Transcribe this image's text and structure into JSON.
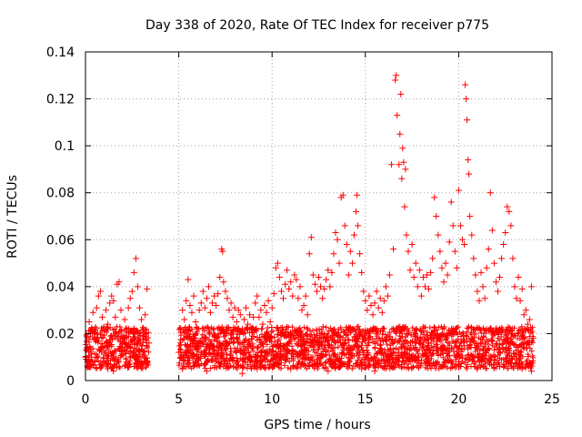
{
  "chart_data": {
    "type": "scatter",
    "title": "Day 338 of 2020, Rate Of TEC Index for receiver p775",
    "xlabel": "GPS time / hours",
    "ylabel": "ROTI / TECUs",
    "xlim": [
      0,
      25
    ],
    "ylim": [
      0,
      0.14
    ],
    "x_ticks": [
      0,
      5,
      10,
      15,
      20,
      25
    ],
    "y_ticks": [
      0,
      0.02,
      0.04,
      0.06,
      0.08,
      0.1,
      0.12,
      0.14
    ],
    "x_tick_labels": [
      "0",
      "5",
      "10",
      "15",
      "20",
      "25"
    ],
    "y_tick_labels": [
      "0",
      "0.02",
      "0.04",
      "0.06",
      "0.08",
      "0.1",
      "0.12",
      "0.14"
    ],
    "grid": true,
    "marker": "plus",
    "color": "#ff0000",
    "series": [
      {
        "points": [
          [
            0.0,
            0.01
          ],
          [
            0.1,
            0.014
          ],
          [
            0.2,
            0.025
          ],
          [
            0.3,
            0.012
          ],
          [
            0.4,
            0.029
          ],
          [
            0.5,
            0.018
          ],
          [
            0.6,
            0.031
          ],
          [
            0.7,
            0.036
          ],
          [
            0.8,
            0.038
          ],
          [
            0.9,
            0.027
          ],
          [
            1.0,
            0.021
          ],
          [
            1.1,
            0.03
          ],
          [
            1.2,
            0.024
          ],
          [
            1.3,
            0.033
          ],
          [
            1.4,
            0.036
          ],
          [
            1.5,
            0.034
          ],
          [
            1.6,
            0.027
          ],
          [
            1.7,
            0.041
          ],
          [
            1.8,
            0.042
          ],
          [
            1.9,
            0.03
          ],
          [
            2.0,
            0.018
          ],
          [
            2.1,
            0.026
          ],
          [
            2.2,
            0.022
          ],
          [
            2.3,
            0.031
          ],
          [
            2.4,
            0.035
          ],
          [
            2.5,
            0.038
          ],
          [
            2.6,
            0.046
          ],
          [
            2.7,
            0.052
          ],
          [
            2.8,
            0.04
          ],
          [
            2.9,
            0.031
          ],
          [
            3.0,
            0.026
          ],
          [
            3.1,
            0.02
          ],
          [
            3.2,
            0.028
          ],
          [
            3.3,
            0.039
          ],
          [
            3.4,
            0.016
          ],
          [
            0.2,
            0.006
          ],
          [
            0.5,
            0.008
          ],
          [
            0.9,
            0.007
          ],
          [
            1.2,
            0.005
          ],
          [
            1.5,
            0.004
          ],
          [
            1.8,
            0.006
          ],
          [
            2.2,
            0.008
          ],
          [
            2.6,
            0.006
          ],
          [
            3.0,
            0.007
          ],
          [
            3.3,
            0.008
          ],
          [
            5.0,
            0.012
          ],
          [
            5.1,
            0.022
          ],
          [
            5.2,
            0.03
          ],
          [
            5.3,
            0.026
          ],
          [
            5.4,
            0.034
          ],
          [
            5.5,
            0.043
          ],
          [
            5.6,
            0.032
          ],
          [
            5.7,
            0.029
          ],
          [
            5.8,
            0.036
          ],
          [
            5.9,
            0.025
          ],
          [
            6.0,
            0.022
          ],
          [
            6.1,
            0.03
          ],
          [
            6.2,
            0.033
          ],
          [
            6.3,
            0.038
          ],
          [
            6.4,
            0.031
          ],
          [
            6.5,
            0.035
          ],
          [
            6.6,
            0.04
          ],
          [
            6.7,
            0.029
          ],
          [
            6.8,
            0.033
          ],
          [
            6.9,
            0.036
          ],
          [
            7.0,
            0.032
          ],
          [
            7.1,
            0.037
          ],
          [
            7.2,
            0.044
          ],
          [
            7.3,
            0.056
          ],
          [
            7.35,
            0.055
          ],
          [
            7.4,
            0.042
          ],
          [
            7.5,
            0.038
          ],
          [
            7.6,
            0.035
          ],
          [
            7.7,
            0.03
          ],
          [
            7.8,
            0.033
          ],
          [
            7.9,
            0.027
          ],
          [
            8.0,
            0.031
          ],
          [
            8.1,
            0.025
          ],
          [
            8.2,
            0.03
          ],
          [
            8.3,
            0.028
          ],
          [
            8.4,
            0.022
          ],
          [
            8.5,
            0.026
          ],
          [
            8.6,
            0.031
          ],
          [
            8.7,
            0.024
          ],
          [
            8.8,
            0.028
          ],
          [
            8.9,
            0.022
          ],
          [
            9.0,
            0.027
          ],
          [
            9.1,
            0.033
          ],
          [
            9.2,
            0.036
          ],
          [
            9.3,
            0.027
          ],
          [
            9.4,
            0.03
          ],
          [
            9.5,
            0.024
          ],
          [
            9.6,
            0.032
          ],
          [
            9.7,
            0.029
          ],
          [
            9.8,
            0.034
          ],
          [
            9.9,
            0.025
          ],
          [
            10.0,
            0.031
          ],
          [
            10.1,
            0.037
          ],
          [
            10.2,
            0.048
          ],
          [
            10.3,
            0.05
          ],
          [
            10.4,
            0.044
          ],
          [
            10.5,
            0.038
          ],
          [
            10.6,
            0.035
          ],
          [
            10.7,
            0.041
          ],
          [
            10.8,
            0.047
          ],
          [
            10.9,
            0.039
          ],
          [
            11.0,
            0.042
          ],
          [
            11.1,
            0.036
          ],
          [
            11.2,
            0.045
          ],
          [
            11.3,
            0.043
          ],
          [
            11.4,
            0.035
          ],
          [
            11.5,
            0.04
          ],
          [
            11.6,
            0.03
          ],
          [
            11.7,
            0.032
          ],
          [
            11.8,
            0.036
          ],
          [
            11.9,
            0.028
          ],
          [
            12.0,
            0.054
          ],
          [
            12.1,
            0.061
          ],
          [
            12.2,
            0.045
          ],
          [
            12.3,
            0.041
          ],
          [
            12.4,
            0.038
          ],
          [
            12.5,
            0.044
          ],
          [
            12.6,
            0.04
          ],
          [
            12.7,
            0.035
          ],
          [
            12.8,
            0.039
          ],
          [
            12.9,
            0.043
          ],
          [
            13.0,
            0.047
          ],
          [
            13.1,
            0.04
          ],
          [
            13.2,
            0.046
          ],
          [
            13.3,
            0.054
          ],
          [
            13.4,
            0.063
          ],
          [
            13.5,
            0.06
          ],
          [
            13.6,
            0.05
          ],
          [
            13.7,
            0.078
          ],
          [
            13.8,
            0.079
          ],
          [
            13.9,
            0.066
          ],
          [
            14.0,
            0.058
          ],
          [
            14.1,
            0.045
          ],
          [
            14.2,
            0.055
          ],
          [
            14.3,
            0.05
          ],
          [
            14.4,
            0.062
          ],
          [
            14.5,
            0.072
          ],
          [
            14.55,
            0.079
          ],
          [
            14.6,
            0.066
          ],
          [
            14.7,
            0.054
          ],
          [
            14.8,
            0.046
          ],
          [
            14.9,
            0.038
          ],
          [
            15.0,
            0.034
          ],
          [
            15.1,
            0.03
          ],
          [
            15.2,
            0.036
          ],
          [
            15.3,
            0.032
          ],
          [
            15.4,
            0.028
          ],
          [
            15.5,
            0.033
          ],
          [
            15.6,
            0.038
          ],
          [
            15.7,
            0.031
          ],
          [
            15.8,
            0.035
          ],
          [
            15.9,
            0.029
          ],
          [
            16.0,
            0.034
          ],
          [
            16.1,
            0.04
          ],
          [
            16.2,
            0.036
          ],
          [
            16.3,
            0.045
          ],
          [
            16.4,
            0.092
          ],
          [
            16.5,
            0.056
          ],
          [
            16.6,
            0.128
          ],
          [
            16.65,
            0.13
          ],
          [
            16.7,
            0.113
          ],
          [
            16.8,
            0.092
          ],
          [
            16.85,
            0.105
          ],
          [
            16.9,
            0.122
          ],
          [
            16.95,
            0.086
          ],
          [
            17.0,
            0.099
          ],
          [
            17.05,
            0.093
          ],
          [
            17.1,
            0.074
          ],
          [
            17.15,
            0.09
          ],
          [
            17.2,
            0.062
          ],
          [
            17.3,
            0.055
          ],
          [
            17.4,
            0.047
          ],
          [
            17.5,
            0.058
          ],
          [
            17.6,
            0.044
          ],
          [
            17.7,
            0.05
          ],
          [
            17.8,
            0.04
          ],
          [
            17.9,
            0.047
          ],
          [
            18.0,
            0.036
          ],
          [
            18.1,
            0.044
          ],
          [
            18.2,
            0.04
          ],
          [
            18.3,
            0.045
          ],
          [
            18.4,
            0.039
          ],
          [
            18.5,
            0.046
          ],
          [
            18.6,
            0.052
          ],
          [
            18.7,
            0.078
          ],
          [
            18.8,
            0.07
          ],
          [
            18.9,
            0.062
          ],
          [
            19.0,
            0.055
          ],
          [
            19.1,
            0.048
          ],
          [
            19.2,
            0.042
          ],
          [
            19.3,
            0.05
          ],
          [
            19.4,
            0.045
          ],
          [
            19.5,
            0.059
          ],
          [
            19.6,
            0.076
          ],
          [
            19.7,
            0.066
          ],
          [
            19.8,
            0.055
          ],
          [
            19.9,
            0.048
          ],
          [
            20.0,
            0.081
          ],
          [
            20.1,
            0.066
          ],
          [
            20.2,
            0.06
          ],
          [
            20.3,
            0.058
          ],
          [
            20.35,
            0.126
          ],
          [
            20.4,
            0.12
          ],
          [
            20.45,
            0.111
          ],
          [
            20.5,
            0.094
          ],
          [
            20.55,
            0.088
          ],
          [
            20.6,
            0.07
          ],
          [
            20.7,
            0.062
          ],
          [
            20.8,
            0.052
          ],
          [
            20.9,
            0.045
          ],
          [
            21.0,
            0.038
          ],
          [
            21.1,
            0.034
          ],
          [
            21.2,
            0.046
          ],
          [
            21.3,
            0.04
          ],
          [
            21.4,
            0.035
          ],
          [
            21.5,
            0.048
          ],
          [
            21.6,
            0.056
          ],
          [
            21.7,
            0.08
          ],
          [
            21.8,
            0.064
          ],
          [
            21.9,
            0.05
          ],
          [
            22.0,
            0.042
          ],
          [
            22.1,
            0.038
          ],
          [
            22.2,
            0.044
          ],
          [
            22.3,
            0.052
          ],
          [
            22.4,
            0.058
          ],
          [
            22.5,
            0.063
          ],
          [
            22.6,
            0.074
          ],
          [
            22.7,
            0.072
          ],
          [
            22.8,
            0.066
          ],
          [
            22.9,
            0.052
          ],
          [
            23.0,
            0.04
          ],
          [
            23.1,
            0.035
          ],
          [
            23.2,
            0.044
          ],
          [
            23.3,
            0.034
          ],
          [
            23.4,
            0.039
          ],
          [
            23.5,
            0.028
          ],
          [
            23.6,
            0.03
          ],
          [
            23.7,
            0.024
          ],
          [
            23.8,
            0.026
          ],
          [
            23.9,
            0.04
          ],
          [
            24.0,
            0.018
          ],
          [
            5.2,
            0.005
          ],
          [
            5.8,
            0.006
          ],
          [
            6.5,
            0.004
          ],
          [
            7.4,
            0.006
          ],
          [
            8.4,
            0.003
          ],
          [
            9.2,
            0.005
          ],
          [
            10.1,
            0.006
          ],
          [
            11.0,
            0.005
          ],
          [
            12.0,
            0.006
          ],
          [
            13.0,
            0.004
          ],
          [
            14.0,
            0.006
          ],
          [
            14.8,
            0.005
          ],
          [
            15.5,
            0.004
          ],
          [
            16.4,
            0.006
          ],
          [
            17.3,
            0.007
          ],
          [
            18.3,
            0.008
          ],
          [
            19.2,
            0.007
          ],
          [
            20.1,
            0.006
          ],
          [
            21.0,
            0.005
          ],
          [
            22.2,
            0.006
          ],
          [
            23.4,
            0.005
          ],
          [
            23.9,
            0.004
          ]
        ]
      }
    ]
  }
}
